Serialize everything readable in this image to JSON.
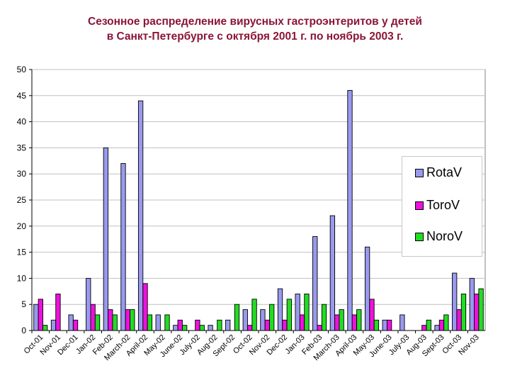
{
  "title": {
    "line1": "Сезонное распределение вирусных гастроэнтеритов у детей",
    "line2": "в Санкт-Петербурге с октября 2001 г.  по ноябрь 2003 г."
  },
  "colors": {
    "RotaV": "#9999ee",
    "ToroV": "#ee11dd",
    "NoroV": "#22dd22",
    "title": "#8b1538",
    "grid": "#c0c0c0"
  },
  "legend": {
    "items": [
      {
        "label": "RotaV",
        "color": "#9999ee"
      },
      {
        "label": "ToroV",
        "color": "#ee11dd"
      },
      {
        "label": "NoroV",
        "color": "#22dd22"
      }
    ]
  },
  "chart_data": {
    "type": "bar",
    "title": "Сезонное распределение вирусных гастроэнтеритов у детей в Санкт-Петербурге с октября 2001 г. по ноябрь 2003 г.",
    "xlabel": "",
    "ylabel": "",
    "ylim": [
      0,
      50
    ],
    "yticks": [
      0,
      5,
      10,
      15,
      20,
      25,
      30,
      35,
      40,
      45,
      50
    ],
    "grid": true,
    "legend_position": "right",
    "categories": [
      "Oct-01",
      "Nov-01",
      "Dec-01",
      "Jan-02",
      "Feb-02",
      "March-02",
      "April-02",
      "May-02",
      "June-02",
      "July-02",
      "Aug-02",
      "Sept-02",
      "Oct-02",
      "Nov-02",
      "Dec-02",
      "Jan-03",
      "Feb-03",
      "March-03",
      "April-03",
      "May-03",
      "June-03",
      "July-03",
      "Aug-03",
      "Sept-03",
      "Oct-03",
      "Nov-03"
    ],
    "series": [
      {
        "name": "RotaV",
        "values": [
          5,
          2,
          3,
          10,
          35,
          32,
          44,
          3,
          1,
          0,
          1,
          2,
          4,
          4,
          8,
          7,
          18,
          22,
          46,
          16,
          2,
          3,
          0,
          1,
          11,
          10
        ]
      },
      {
        "name": "ToroV",
        "values": [
          6,
          7,
          2,
          5,
          4,
          4,
          9,
          0,
          2,
          2,
          0,
          0,
          1,
          2,
          2,
          3,
          1,
          3,
          3,
          6,
          2,
          0,
          1,
          2,
          4,
          7
        ]
      },
      {
        "name": "NoroV",
        "values": [
          1,
          0,
          0,
          3,
          3,
          4,
          3,
          3,
          1,
          1,
          2,
          5,
          6,
          5,
          6,
          7,
          5,
          4,
          4,
          2,
          0,
          0,
          2,
          3,
          7,
          8
        ]
      }
    ]
  }
}
